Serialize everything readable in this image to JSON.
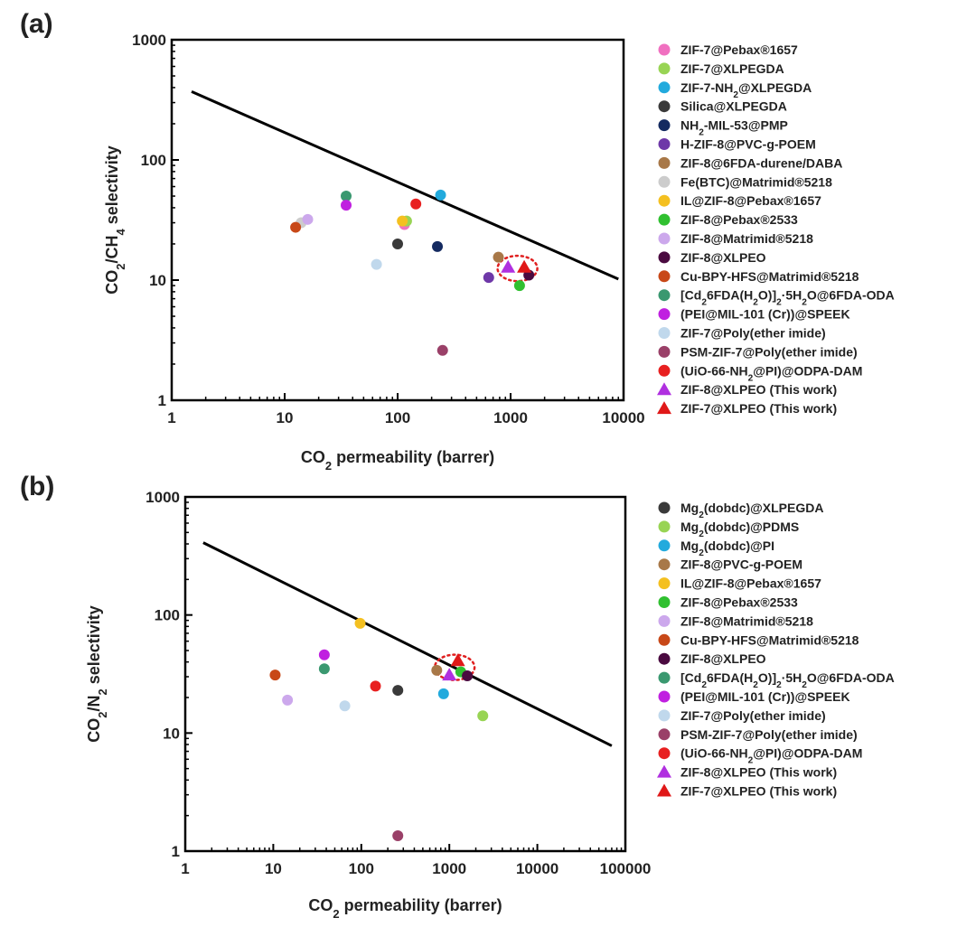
{
  "colors": {
    "axis": "#000000",
    "text": "#222222",
    "highlight_ring": "#e02020"
  },
  "chart_data": [
    {
      "panel_label": "(a)",
      "type": "scatter",
      "xscale": "log",
      "yscale": "log",
      "xlim": [
        1,
        10000
      ],
      "ylim": [
        1,
        1000
      ],
      "xticks": [
        "1",
        "10",
        "100",
        "1000",
        "10000"
      ],
      "yticks": [
        "1",
        "10",
        "100",
        "1000"
      ],
      "xlabel": {
        "prefix": "CO",
        "sub": "2",
        "suffix": " permeability (barrer)"
      },
      "ylabel": {
        "parts": [
          [
            "CO",
            ""
          ],
          [
            "2",
            "sub"
          ],
          [
            "/CH",
            ""
          ],
          [
            "4",
            "sub"
          ],
          [
            " selectivity",
            ""
          ]
        ]
      },
      "grid": false,
      "legend_position": "right",
      "upper_bound": {
        "x": [
          1.5,
          9000
        ],
        "y": [
          370,
          10.2
        ]
      },
      "highlight": {
        "x": 1150,
        "y": 12.5
      },
      "series": [
        {
          "parts": [
            [
              "ZIF-7@Pebax®1657",
              ""
            ]
          ],
          "marker": "circle",
          "color": "#f070c0",
          "x": 115,
          "y": 29
        },
        {
          "parts": [
            [
              "ZIF-7@XLPEGDA",
              ""
            ]
          ],
          "marker": "circle",
          "color": "#98d454",
          "x": 120,
          "y": 31
        },
        {
          "parts": [
            [
              "ZIF-7-NH",
              ""
            ],
            [
              "2",
              "sub"
            ],
            [
              "@XLPEGDA",
              ""
            ]
          ],
          "marker": "circle",
          "color": "#22aadd",
          "x": 240,
          "y": 51
        },
        {
          "parts": [
            [
              "Silica@XLPEGDA",
              ""
            ]
          ],
          "marker": "circle",
          "color": "#3a3a3a",
          "x": 100,
          "y": 20
        },
        {
          "parts": [
            [
              "NH",
              ""
            ],
            [
              "2",
              "sub"
            ],
            [
              "-MIL-53@PMP",
              ""
            ]
          ],
          "marker": "circle",
          "color": "#142a60",
          "x": 225,
          "y": 19
        },
        {
          "parts": [
            [
              "H-ZIF-8@PVC-g-POEM",
              ""
            ]
          ],
          "marker": "circle",
          "color": "#6e38a8",
          "x": 640,
          "y": 10.5
        },
        {
          "parts": [
            [
              "ZIF-8@6FDA-durene/DABA",
              ""
            ]
          ],
          "marker": "circle",
          "color": "#a87848",
          "x": 780,
          "y": 15.5
        },
        {
          "parts": [
            [
              "Fe(BTC)@Matrimid®5218",
              ""
            ]
          ],
          "marker": "circle",
          "color": "#cccccc",
          "x": 14,
          "y": 30
        },
        {
          "parts": [
            [
              "IL@ZIF-8@Pebax®1657",
              ""
            ]
          ],
          "marker": "circle",
          "color": "#f4c020",
          "x": 110,
          "y": 31
        },
        {
          "parts": [
            [
              "ZIF-8@Pebax®2533",
              ""
            ]
          ],
          "marker": "circle",
          "color": "#30c030",
          "x": 1200,
          "y": 9
        },
        {
          "parts": [
            [
              "ZIF-8@Matrimid®5218",
              ""
            ]
          ],
          "marker": "circle",
          "color": "#cca8ec",
          "x": 16,
          "y": 32
        },
        {
          "parts": [
            [
              "ZIF-8@XLPEO",
              ""
            ]
          ],
          "marker": "circle",
          "color": "#4a0a40",
          "x": 1450,
          "y": 11
        },
        {
          "parts": [
            [
              "Cu-BPY-HFS@Matrimid®5218",
              ""
            ]
          ],
          "marker": "circle",
          "color": "#c84818",
          "x": 12.5,
          "y": 27.5
        },
        {
          "parts": [
            [
              "[Cd",
              ""
            ],
            [
              "2",
              "sub"
            ],
            [
              "6FDA(H",
              ""
            ],
            [
              "2",
              "sub"
            ],
            [
              "O)]",
              ""
            ],
            [
              "2",
              "sub"
            ],
            [
              "·5H",
              ""
            ],
            [
              "2",
              "sub"
            ],
            [
              "O@6FDA-ODA",
              ""
            ]
          ],
          "marker": "circle",
          "color": "#3a9870",
          "x": 35,
          "y": 50
        },
        {
          "parts": [
            [
              "(PEI@MIL-101 (Cr))@SPEEK",
              ""
            ]
          ],
          "marker": "circle",
          "color": "#c020e0",
          "x": 35,
          "y": 42
        },
        {
          "parts": [
            [
              "ZIF-7@Poly(ether imide)",
              ""
            ]
          ],
          "marker": "circle",
          "color": "#c0d8ec",
          "x": 65,
          "y": 13.5
        },
        {
          "parts": [
            [
              "PSM-ZIF-7@Poly(ether imide)",
              ""
            ]
          ],
          "marker": "circle",
          "color": "#9a4068",
          "x": 250,
          "y": 2.6
        },
        {
          "parts": [
            [
              "(UiO-66-NH",
              ""
            ],
            [
              "2",
              "sub"
            ],
            [
              "@PI)@ODPA-DAM",
              ""
            ]
          ],
          "marker": "circle",
          "color": "#e82020",
          "x": 145,
          "y": 43
        },
        {
          "parts": [
            [
              "ZIF-8@XLPEO (This work)",
              ""
            ]
          ],
          "marker": "triangle",
          "color": "#b030e0",
          "x": 950,
          "y": 12.8
        },
        {
          "parts": [
            [
              "ZIF-7@XLPEO (This work)",
              ""
            ]
          ],
          "marker": "triangle",
          "color": "#e01818",
          "x": 1320,
          "y": 12.8
        }
      ]
    },
    {
      "panel_label": "(b)",
      "type": "scatter",
      "xscale": "log",
      "yscale": "log",
      "xlim": [
        1,
        100000
      ],
      "ylim": [
        1,
        1000
      ],
      "xticks": [
        "1",
        "10",
        "100",
        "1000",
        "10000",
        "100000"
      ],
      "yticks": [
        "1",
        "10",
        "100",
        "1000"
      ],
      "xlabel": {
        "prefix": "CO",
        "sub": "2",
        "suffix": " permeability (barrer)"
      },
      "ylabel": {
        "parts": [
          [
            "CO",
            ""
          ],
          [
            "2",
            "sub"
          ],
          [
            "/N",
            ""
          ],
          [
            "2",
            "sub"
          ],
          [
            " selectivity",
            ""
          ]
        ]
      },
      "grid": false,
      "legend_position": "right",
      "upper_bound": {
        "x": [
          1.6,
          70000
        ],
        "y": [
          410,
          7.8
        ]
      },
      "highlight": {
        "x": 1150,
        "y": 36
      },
      "series": [
        {
          "parts": [
            [
              "Mg",
              ""
            ],
            [
              "2",
              "sub"
            ],
            [
              "(dobdc)@XLPEGDA",
              ""
            ]
          ],
          "marker": "circle",
          "color": "#3a3a3a",
          "x": 260,
          "y": 23
        },
        {
          "parts": [
            [
              "Mg",
              ""
            ],
            [
              "2",
              "sub"
            ],
            [
              "(dobdc)@PDMS",
              ""
            ]
          ],
          "marker": "circle",
          "color": "#98d454",
          "x": 2400,
          "y": 14
        },
        {
          "parts": [
            [
              "Mg",
              ""
            ],
            [
              "2",
              "sub"
            ],
            [
              "(dobdc)@PI",
              ""
            ]
          ],
          "marker": "circle",
          "color": "#22aadd",
          "x": 860,
          "y": 21.5
        },
        {
          "parts": [
            [
              "ZIF-8@PVC-g-POEM",
              ""
            ]
          ],
          "marker": "circle",
          "color": "#a87848",
          "x": 720,
          "y": 34
        },
        {
          "parts": [
            [
              "IL@ZIF-8@Pebax®1657",
              ""
            ]
          ],
          "marker": "circle",
          "color": "#f4c020",
          "x": 97,
          "y": 85
        },
        {
          "parts": [
            [
              "ZIF-8@Pebax®2533",
              ""
            ]
          ],
          "marker": "circle",
          "color": "#30c030",
          "x": 1350,
          "y": 33
        },
        {
          "parts": [
            [
              "ZIF-8@Matrimid®5218",
              ""
            ]
          ],
          "marker": "circle",
          "color": "#cca8ec",
          "x": 14.5,
          "y": 19
        },
        {
          "parts": [
            [
              "Cu-BPY-HFS@Matrimid®5218",
              ""
            ]
          ],
          "marker": "circle",
          "color": "#c84818",
          "x": 10.5,
          "y": 31
        },
        {
          "parts": [
            [
              "ZIF-8@XLPEO",
              ""
            ]
          ],
          "marker": "circle",
          "color": "#4a0a40",
          "x": 1600,
          "y": 30.5
        },
        {
          "parts": [
            [
              "[Cd",
              ""
            ],
            [
              "2",
              "sub"
            ],
            [
              "6FDA(H",
              ""
            ],
            [
              "2",
              "sub"
            ],
            [
              "O)]",
              ""
            ],
            [
              "2",
              "sub"
            ],
            [
              "·5H",
              ""
            ],
            [
              "2",
              "sub"
            ],
            [
              "O@6FDA-ODA",
              ""
            ]
          ],
          "marker": "circle",
          "color": "#3a9870",
          "x": 38,
          "y": 35
        },
        {
          "parts": [
            [
              "(PEI@MIL-101 (Cr))@SPEEK",
              ""
            ]
          ],
          "marker": "circle",
          "color": "#c020e0",
          "x": 38,
          "y": 46
        },
        {
          "parts": [
            [
              "ZIF-7@Poly(ether imide)",
              ""
            ]
          ],
          "marker": "circle",
          "color": "#c0d8ec",
          "x": 65,
          "y": 17
        },
        {
          "parts": [
            [
              "PSM-ZIF-7@Poly(ether imide)",
              ""
            ]
          ],
          "marker": "circle",
          "color": "#9a4068",
          "x": 260,
          "y": 1.35
        },
        {
          "parts": [
            [
              "(UiO-66-NH",
              ""
            ],
            [
              "2",
              "sub"
            ],
            [
              "@PI)@ODPA-DAM",
              ""
            ]
          ],
          "marker": "circle",
          "color": "#e82020",
          "x": 145,
          "y": 25
        },
        {
          "parts": [
            [
              "ZIF-8@XLPEO (This work)",
              ""
            ]
          ],
          "marker": "triangle",
          "color": "#b030e0",
          "x": 1000,
          "y": 31
        },
        {
          "parts": [
            [
              "ZIF-7@XLPEO (This work)",
              ""
            ]
          ],
          "marker": "triangle",
          "color": "#e01818",
          "x": 1250,
          "y": 41
        }
      ]
    }
  ]
}
